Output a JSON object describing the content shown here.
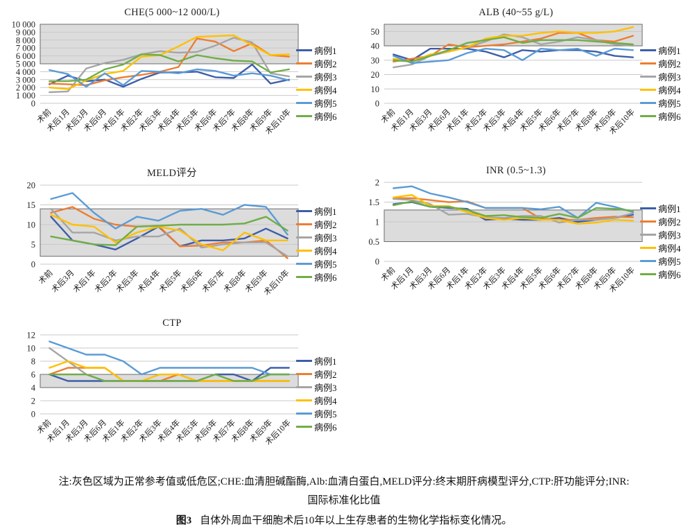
{
  "legend": {
    "series": [
      {
        "name": "病例1",
        "color": "#3D5EA8"
      },
      {
        "name": "病例2",
        "color": "#ED7D31"
      },
      {
        "name": "病例3",
        "color": "#A5A5A5"
      },
      {
        "name": "病例4",
        "color": "#FFC000"
      },
      {
        "name": "病例5",
        "color": "#5B9BD5"
      },
      {
        "name": "病例6",
        "color": "#70AD47"
      }
    ],
    "band_fill": "#dcdcdc",
    "band_border": "#6b6b6b",
    "gridline_color": "#c8c8c8"
  },
  "chart_data": [
    {
      "id": "che",
      "type": "line",
      "title": "CHE(5 000~12 000/L)",
      "ylim": [
        0,
        10000
      ],
      "yticks": [
        0,
        1000,
        2000,
        3000,
        4000,
        5000,
        6000,
        7000,
        8000,
        9000,
        10000
      ],
      "yticklabels": [
        "0",
        "1 000",
        "2 000",
        "3 000",
        "4 000",
        "5 000",
        "6 000",
        "7 000",
        "8 000",
        "9 000",
        "10 000"
      ],
      "band": [
        5000,
        10000
      ],
      "grid": true,
      "legend_position": "right",
      "categories": [
        "术前",
        "术后1月",
        "术后3月",
        "术后6月",
        "术后1年",
        "术后2年",
        "术后3年",
        "术后4年",
        "术后5年",
        "术后6年",
        "术后7年",
        "术后8年",
        "术后9年",
        "术后10年"
      ],
      "series": [
        {
          "name": "病例1",
          "values": [
            2400,
            3500,
            2800,
            3000,
            2100,
            3100,
            3900,
            3900,
            4000,
            3300,
            3200,
            4900,
            2500,
            3000
          ]
        },
        {
          "name": "病例2",
          "values": [
            2500,
            2400,
            2300,
            2900,
            3300,
            3600,
            4000,
            4600,
            8200,
            7800,
            6600,
            7600,
            6100,
            5900
          ]
        },
        {
          "name": "病例3",
          "values": [
            1400,
            1500,
            4400,
            5100,
            5500,
            6200,
            6600,
            6400,
            6500,
            7300,
            8300,
            7700,
            3800,
            3400
          ]
        },
        {
          "name": "病例4",
          "values": [
            2000,
            1800,
            2900,
            3700,
            4100,
            5900,
            6100,
            7200,
            8400,
            8500,
            8600,
            7350,
            6100,
            6200
          ]
        },
        {
          "name": "病例5",
          "values": [
            4200,
            3700,
            2100,
            3800,
            2300,
            4100,
            4000,
            3800,
            4300,
            4100,
            3500,
            3800,
            3500,
            2900
          ]
        },
        {
          "name": "病例6",
          "values": [
            2800,
            2800,
            3000,
            4300,
            4900,
            6200,
            6100,
            5300,
            6100,
            5700,
            5400,
            5300,
            3900,
            4300
          ]
        }
      ]
    },
    {
      "id": "alb",
      "type": "line",
      "title": "ALB (40~55 g/L)",
      "ylim": [
        0,
        55
      ],
      "yticks": [
        0,
        10,
        20,
        30,
        40,
        50
      ],
      "yticklabels": [
        "0",
        "10",
        "20",
        "30",
        "40",
        "50"
      ],
      "band": [
        40,
        55
      ],
      "grid": true,
      "legend_position": "right",
      "categories": [
        "术前",
        "术后1月",
        "术后3月",
        "术后6月",
        "术后1年",
        "术后2年",
        "术后3年",
        "术后4年",
        "术后5年",
        "术后6年",
        "术后7年",
        "术后8年",
        "术后9年",
        "术后10年"
      ],
      "series": [
        {
          "name": "病例1",
          "values": [
            34,
            30,
            38,
            38,
            38,
            36,
            32,
            37,
            36,
            37,
            37,
            36,
            33,
            32
          ]
        },
        {
          "name": "病例2",
          "values": [
            29,
            31,
            33,
            41,
            39,
            40,
            41,
            43,
            45,
            49,
            49,
            44,
            43,
            47
          ]
        },
        {
          "name": "病例3",
          "values": [
            25,
            27,
            33,
            36,
            39,
            43,
            48,
            46,
            41,
            43,
            46,
            44,
            41,
            40
          ]
        },
        {
          "name": "病例4",
          "values": [
            31,
            29,
            34,
            36,
            39,
            45,
            47,
            47,
            49,
            50,
            49,
            49,
            50,
            53
          ]
        },
        {
          "name": "病例5",
          "values": [
            33,
            28,
            29,
            30,
            35,
            38,
            37,
            30,
            38,
            37,
            38,
            33,
            38,
            37
          ]
        },
        {
          "name": "病例6",
          "values": [
            30,
            29,
            33,
            37,
            42,
            44,
            46,
            42,
            44,
            44,
            44,
            43,
            42,
            41
          ]
        }
      ]
    },
    {
      "id": "meld",
      "type": "line",
      "title": "MELD评分",
      "ylim": [
        0,
        20
      ],
      "yticks": [
        0,
        5,
        10,
        15,
        20
      ],
      "yticklabels": [
        "0",
        "5",
        "10",
        "15",
        "20"
      ],
      "band": [
        2,
        14
      ],
      "grid": true,
      "legend_position": "right",
      "categories": [
        "术前",
        "术后3月",
        "术后1年",
        "术后2年",
        "术后3年",
        "术后4年",
        "术后5年",
        "术后6年",
        "术后7年",
        "术后8年",
        "术后9年",
        "术后10年"
      ],
      "series": [
        {
          "name": "病例1",
          "values": [
            12,
            6,
            5,
            3.7,
            6.5,
            9.5,
            4.5,
            6,
            6,
            6.5,
            9,
            6.5
          ]
        },
        {
          "name": "病例2",
          "values": [
            13,
            14.5,
            11.5,
            10,
            9.5,
            9.7,
            4.5,
            4.7,
            5.5,
            5.5,
            6,
            1.5
          ]
        },
        {
          "name": "病例3",
          "values": [
            14,
            8,
            8,
            6,
            7,
            7,
            9,
            4.2,
            5,
            5.5,
            5.5,
            2
          ]
        },
        {
          "name": "病例4",
          "values": [
            12.5,
            10,
            9.5,
            5.5,
            8,
            9.5,
            8.5,
            5,
            3.5,
            8,
            6,
            6
          ]
        },
        {
          "name": "病例5",
          "values": [
            16.5,
            18,
            13,
            9,
            12,
            11,
            13.5,
            14,
            12.5,
            15,
            14.5,
            7.5
          ]
        },
        {
          "name": "病例6",
          "values": [
            7,
            6,
            5,
            4.8,
            9.5,
            9.7,
            10,
            10,
            10,
            10.3,
            12,
            8.5
          ]
        }
      ]
    },
    {
      "id": "inr",
      "type": "line",
      "title": "INR (0.5~1.3)",
      "ylim": [
        0,
        2
      ],
      "yticks": [
        0,
        0.5,
        1,
        1.5,
        2
      ],
      "yticklabels": [
        "0",
        "0.5",
        "1",
        "1.5",
        "2"
      ],
      "band": [
        0.5,
        1.3
      ],
      "grid": true,
      "legend_position": "right",
      "categories": [
        "术前",
        "术后1月",
        "术后3月",
        "术后6月",
        "术后1年",
        "术后2年",
        "术后3年",
        "术后4年",
        "术后5年",
        "术后6年",
        "术后7年",
        "术后8年",
        "术后9年",
        "术后10年"
      ],
      "series": [
        {
          "name": "病例1",
          "values": [
            1.45,
            1.5,
            1.38,
            1.35,
            1.33,
            1.05,
            1.08,
            1.05,
            1.05,
            1.1,
            1.0,
            1.05,
            1.1,
            1.18
          ]
        },
        {
          "name": "病例2",
          "values": [
            1.6,
            1.6,
            1.55,
            1.5,
            1.52,
            1.35,
            1.35,
            1.35,
            1.08,
            1.05,
            1.05,
            1.1,
            1.13,
            1.12
          ]
        },
        {
          "name": "病例3",
          "values": [
            1.58,
            1.55,
            1.45,
            1.18,
            1.2,
            1.12,
            1.1,
            1.15,
            1.15,
            0.98,
            1.05,
            1.05,
            1.1,
            1.22
          ]
        },
        {
          "name": "病例4",
          "values": [
            1.62,
            1.68,
            1.4,
            1.4,
            1.25,
            1.1,
            1.05,
            1.1,
            1.05,
            1.05,
            0.95,
            0.98,
            1.05,
            1.03
          ]
        },
        {
          "name": "病例5",
          "values": [
            1.85,
            1.9,
            1.72,
            1.62,
            1.5,
            1.35,
            1.35,
            1.35,
            1.32,
            1.38,
            1.1,
            1.48,
            1.38,
            1.25
          ]
        },
        {
          "name": "病例6",
          "values": [
            1.42,
            1.52,
            1.38,
            1.38,
            1.3,
            1.15,
            1.17,
            1.12,
            1.1,
            1.2,
            1.1,
            1.35,
            1.33,
            1.28
          ]
        }
      ]
    },
    {
      "id": "ctp",
      "type": "line",
      "title": "CTP",
      "ylim": [
        0,
        12
      ],
      "yticks": [
        0,
        2,
        4,
        6,
        8,
        10,
        12
      ],
      "yticklabels": [
        "0",
        "2",
        "4",
        "6",
        "8",
        "10",
        "12"
      ],
      "band": [
        4,
        6
      ],
      "grid": true,
      "legend_position": "right",
      "categories": [
        "术前",
        "术后1月",
        "术后3月",
        "术后6月",
        "术后1年",
        "术后2年",
        "术后3年",
        "术后4年",
        "术后5年",
        "术后6年",
        "术后7年",
        "术后8年",
        "术后9年",
        "术后10年"
      ],
      "series": [
        {
          "name": "病例1",
          "values": [
            6,
            5,
            5,
            5,
            5,
            5,
            5,
            5,
            5,
            6,
            6,
            5,
            7,
            7
          ]
        },
        {
          "name": "病例2",
          "values": [
            6,
            7,
            7,
            7,
            5,
            5,
            5,
            6,
            5,
            5,
            5,
            5,
            5,
            5
          ]
        },
        {
          "name": "病例3",
          "values": [
            10,
            8,
            6,
            5,
            5,
            5,
            5,
            5,
            5,
            5,
            5,
            5,
            5,
            5
          ]
        },
        {
          "name": "病例4",
          "values": [
            7,
            8,
            7,
            7,
            5,
            5,
            6,
            6,
            5,
            5,
            5,
            5,
            5,
            5
          ]
        },
        {
          "name": "病例5",
          "values": [
            11,
            10,
            9,
            9,
            8,
            6,
            7,
            7,
            7,
            7,
            7,
            7,
            6,
            6
          ]
        },
        {
          "name": "病例6",
          "values": [
            6,
            6,
            6,
            5,
            5,
            5,
            5,
            5,
            5,
            6,
            5,
            5,
            6,
            6
          ]
        }
      ]
    }
  ],
  "caption": {
    "note_line1": "注:灰色区域为正常参考值或低危区;CHE:血清胆碱酯酶,Alb:血清白蛋白,MELD评分:终末期肝病模型评分,CTP:肝功能评分;INR:",
    "note_line2": "国际标准化比值",
    "fig_label": "图3",
    "fig_text": "自体外周血干细胞术后10年以上生存患者的生物化学指标变化情况。"
  }
}
